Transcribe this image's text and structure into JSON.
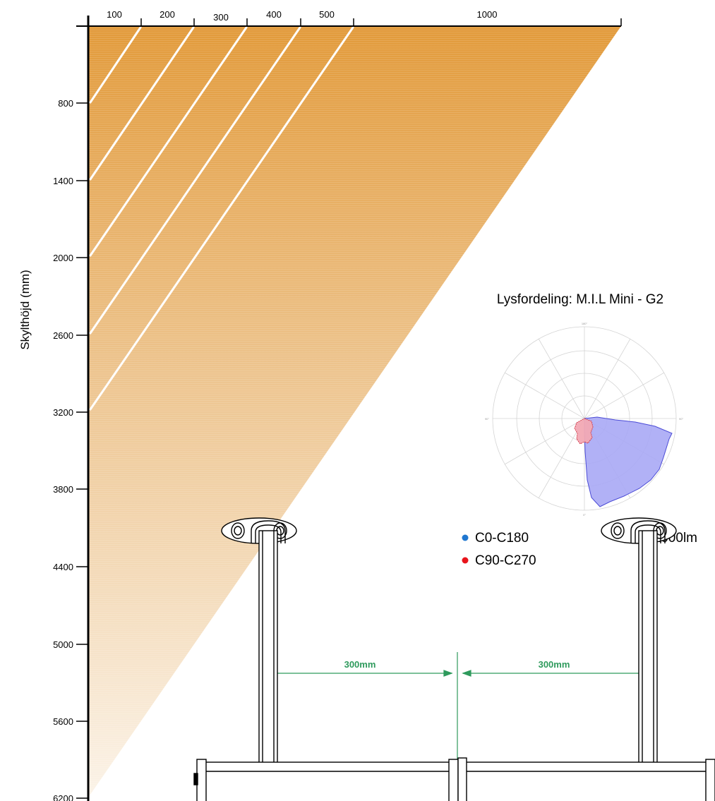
{
  "diagram": {
    "y_axis_label": "Skylthöjd (mm)",
    "x_ticks": [
      "100",
      "200",
      "300",
      "400",
      "500",
      "1000"
    ],
    "y_ticks": [
      "800",
      "1400",
      "2000",
      "2600",
      "3200",
      "3800",
      "4400",
      "5000",
      "5600",
      "6200"
    ],
    "colors": {
      "cone_top": "#e29a3a",
      "cone_bottom": "#fbf3e8",
      "rule_line": "#ffffff",
      "dimension": "#2e9a5c"
    }
  },
  "chart_data": {
    "type": "diagram",
    "x_ticks": [
      100,
      200,
      300,
      400,
      500,
      1000
    ],
    "y_ticks": [
      800,
      1400,
      2000,
      2600,
      3200,
      3800,
      4400,
      5000,
      5600,
      6200
    ],
    "ylabel": "Skylthöjd (mm)"
  },
  "polar": {
    "title": "Lysfordeling: M.I.L Mini - G2",
    "unit": "cd/1000lm",
    "legend": [
      {
        "label": "C0-C180",
        "color": "#1f77d0"
      },
      {
        "label": "C90-C270",
        "color": "#e8141b"
      }
    ],
    "fill_blue": "#a9a9f5",
    "fill_red": "#f2a9b4"
  },
  "mounting": {
    "dimension_left": "300mm",
    "dimension_right": "300mm"
  }
}
